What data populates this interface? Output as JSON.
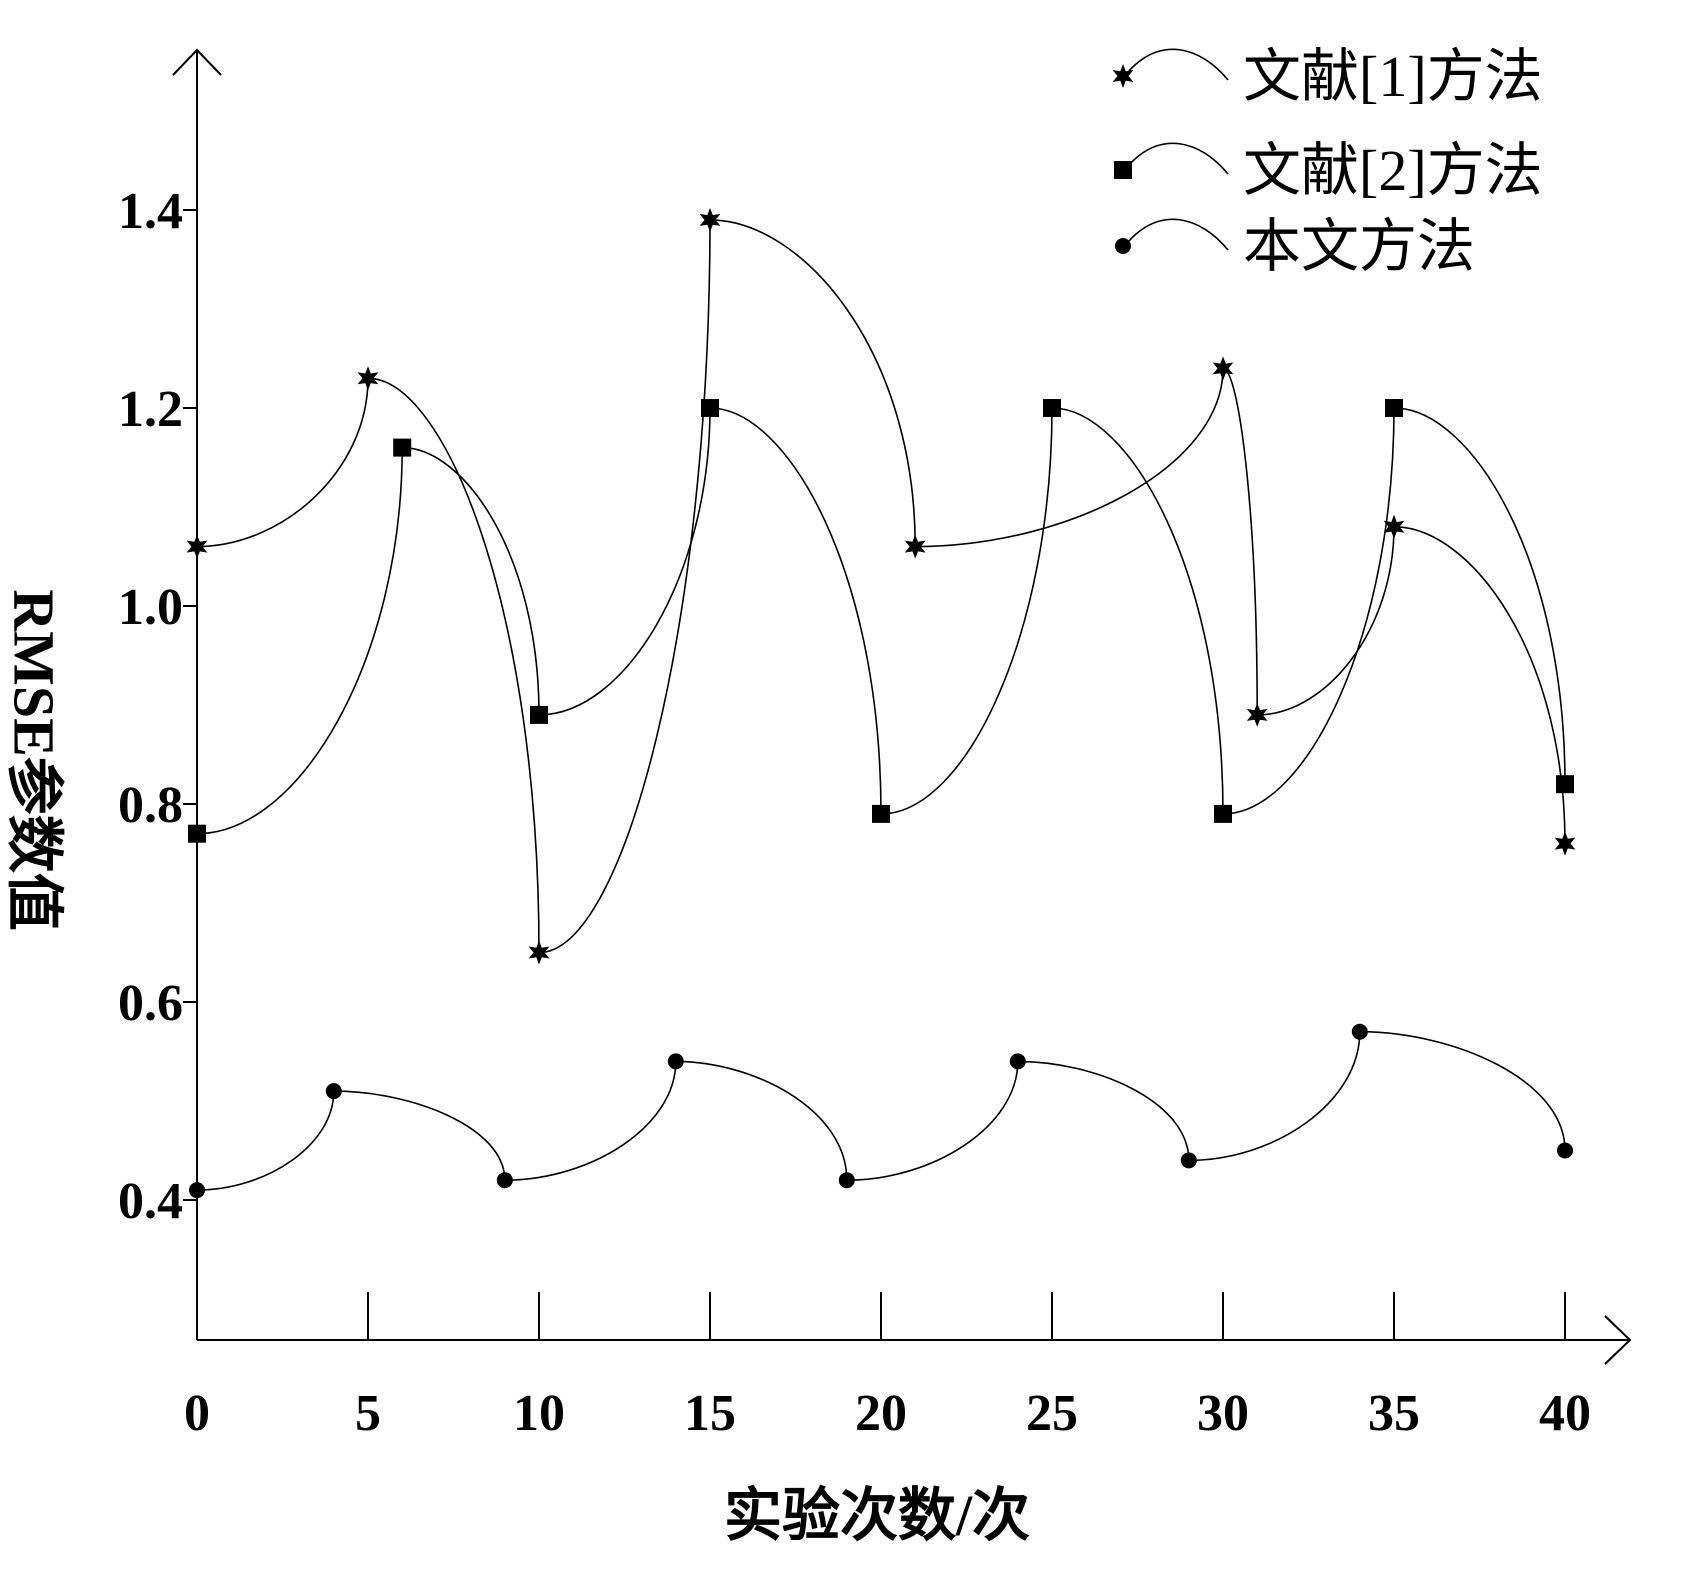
{
  "chart_data": {
    "type": "line",
    "xlabel": "实验次数/次",
    "ylabel": "RMSE参数值",
    "xlim": [
      0,
      40
    ],
    "ylim": [
      0.3,
      1.55
    ],
    "x_ticks": [
      0,
      5,
      10,
      15,
      20,
      25,
      30,
      35,
      40
    ],
    "x_tick_labels": [
      "0",
      "5",
      "10",
      "15",
      "20",
      "25",
      "30",
      "35",
      "40"
    ],
    "y_ticks": [
      0.4,
      0.6,
      0.8,
      1.0,
      1.2,
      1.4
    ],
    "y_tick_labels": [
      "0.4",
      "0.6",
      "0.8",
      "1.0",
      "1.2",
      "1.4"
    ],
    "legend_position": "top-right",
    "series": [
      {
        "name": "文献[1]方法",
        "marker": "star",
        "color": "#000000",
        "x": [
          0,
          5,
          10,
          15,
          21,
          30,
          31,
          35,
          40
        ],
        "y": [
          1.06,
          1.23,
          0.65,
          1.39,
          1.06,
          1.24,
          0.89,
          1.08,
          0.76
        ]
      },
      {
        "name": "文献[2]方法",
        "marker": "square",
        "color": "#000000",
        "x": [
          0,
          6,
          10,
          15,
          20,
          25,
          30,
          35,
          40
        ],
        "y": [
          0.77,
          1.16,
          0.89,
          1.2,
          0.79,
          1.2,
          0.79,
          1.2,
          0.82
        ]
      },
      {
        "name": "本文方法",
        "marker": "circle",
        "color": "#000000",
        "x": [
          0,
          4,
          9,
          14,
          19,
          24,
          29,
          34,
          40
        ],
        "y": [
          0.41,
          0.51,
          0.42,
          0.54,
          0.42,
          0.54,
          0.44,
          0.57,
          0.45
        ]
      }
    ]
  }
}
